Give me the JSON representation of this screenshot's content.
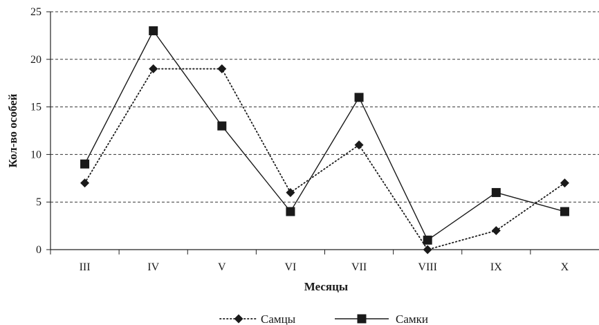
{
  "chart_data": {
    "type": "line",
    "title": "",
    "xlabel": "Месяцы",
    "ylabel": "Кол-во особей",
    "categories": [
      "III",
      "IV",
      "V",
      "VI",
      "VII",
      "VIII",
      "IX",
      "X"
    ],
    "ylim": [
      0,
      25
    ],
    "yticks": [
      0,
      5,
      10,
      15,
      20,
      25
    ],
    "grid": "horizontal dashed",
    "legend_position": "bottom",
    "series": [
      {
        "name": "Самцы",
        "values": [
          7,
          19,
          19,
          6,
          11,
          0,
          2,
          7
        ],
        "style": "dotted",
        "marker": "diamond",
        "color": "#1a1a1a"
      },
      {
        "name": "Самки",
        "values": [
          9,
          23,
          13,
          4,
          16,
          1,
          6,
          4
        ],
        "style": "solid",
        "marker": "square",
        "color": "#1a1a1a"
      }
    ]
  }
}
